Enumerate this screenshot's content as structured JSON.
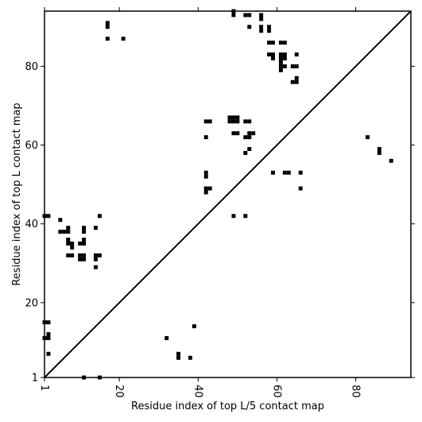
{
  "chart_data": {
    "type": "scatter",
    "title": "",
    "xlabel": "Residue index of top L/5 contact map",
    "ylabel": "Residue index of top L contact map",
    "xlim": [
      1,
      94
    ],
    "ylim": [
      1,
      94
    ],
    "xticks": [
      1,
      20,
      40,
      60,
      80
    ],
    "yticks": [
      1,
      20,
      40,
      60,
      80
    ],
    "x_tick_rotation": -90,
    "grid": false,
    "diagonal": true,
    "colors": {
      "contact": "#000000",
      "diagonal": "#000000",
      "frame": "#000000"
    },
    "series": [
      {
        "values": [
          [
            1,
            42
          ],
          [
            2,
            42
          ],
          [
            1,
            15
          ],
          [
            2,
            15
          ],
          [
            1,
            11
          ],
          [
            2,
            11
          ],
          [
            2,
            12
          ],
          [
            2,
            7
          ],
          [
            5,
            41
          ],
          [
            5,
            38
          ],
          [
            6,
            38
          ],
          [
            7,
            38
          ],
          [
            7,
            39
          ],
          [
            7,
            36
          ],
          [
            7,
            35
          ],
          [
            8,
            35
          ],
          [
            8,
            34
          ],
          [
            7,
            32
          ],
          [
            8,
            32
          ],
          [
            10,
            32
          ],
          [
            11,
            32
          ],
          [
            10,
            31
          ],
          [
            11,
            31
          ],
          [
            10,
            35
          ],
          [
            11,
            35
          ],
          [
            11,
            36
          ],
          [
            11,
            38
          ],
          [
            11,
            39
          ],
          [
            14,
            39
          ],
          [
            14,
            32
          ],
          [
            15,
            32
          ],
          [
            14,
            31
          ],
          [
            14,
            29
          ],
          [
            15,
            42
          ],
          [
            11,
            1
          ],
          [
            15,
            1
          ],
          [
            17,
            90
          ],
          [
            17,
            91
          ],
          [
            17,
            87
          ],
          [
            21,
            87
          ],
          [
            32,
            11
          ],
          [
            35,
            7
          ],
          [
            35,
            6
          ],
          [
            38,
            6
          ],
          [
            39,
            14
          ],
          [
            42,
            66
          ],
          [
            43,
            66
          ],
          [
            42,
            62
          ],
          [
            42,
            53
          ],
          [
            42,
            52
          ],
          [
            42,
            49
          ],
          [
            43,
            49
          ],
          [
            42,
            48
          ],
          [
            48,
            67
          ],
          [
            49,
            67
          ],
          [
            50,
            67
          ],
          [
            48,
            66
          ],
          [
            49,
            66
          ],
          [
            50,
            66
          ],
          [
            49,
            63
          ],
          [
            50,
            63
          ],
          [
            49,
            42
          ],
          [
            49,
            94
          ],
          [
            49,
            93
          ],
          [
            52,
            93
          ],
          [
            53,
            93
          ],
          [
            53,
            90
          ],
          [
            52,
            66
          ],
          [
            53,
            66
          ],
          [
            52,
            62
          ],
          [
            53,
            62
          ],
          [
            53,
            63
          ],
          [
            54,
            63
          ],
          [
            53,
            59
          ],
          [
            52,
            58
          ],
          [
            52,
            42
          ],
          [
            56,
            93
          ],
          [
            56,
            92
          ],
          [
            56,
            90
          ],
          [
            56,
            89
          ],
          [
            58,
            90
          ],
          [
            58,
            89
          ],
          [
            58,
            86
          ],
          [
            59,
            86
          ],
          [
            58,
            83
          ],
          [
            59,
            83
          ],
          [
            59,
            82
          ],
          [
            61,
            86
          ],
          [
            62,
            86
          ],
          [
            61,
            83
          ],
          [
            62,
            83
          ],
          [
            61,
            82
          ],
          [
            62,
            82
          ],
          [
            61,
            81
          ],
          [
            61,
            80
          ],
          [
            62,
            80
          ],
          [
            61,
            79
          ],
          [
            64,
            80
          ],
          [
            65,
            80
          ],
          [
            65,
            83
          ],
          [
            64,
            76
          ],
          [
            65,
            76
          ],
          [
            65,
            77
          ],
          [
            59,
            53
          ],
          [
            62,
            53
          ],
          [
            63,
            53
          ],
          [
            66,
            53
          ],
          [
            66,
            49
          ],
          [
            83,
            62
          ],
          [
            86,
            59
          ],
          [
            86,
            58
          ],
          [
            89,
            56
          ]
        ]
      }
    ]
  }
}
